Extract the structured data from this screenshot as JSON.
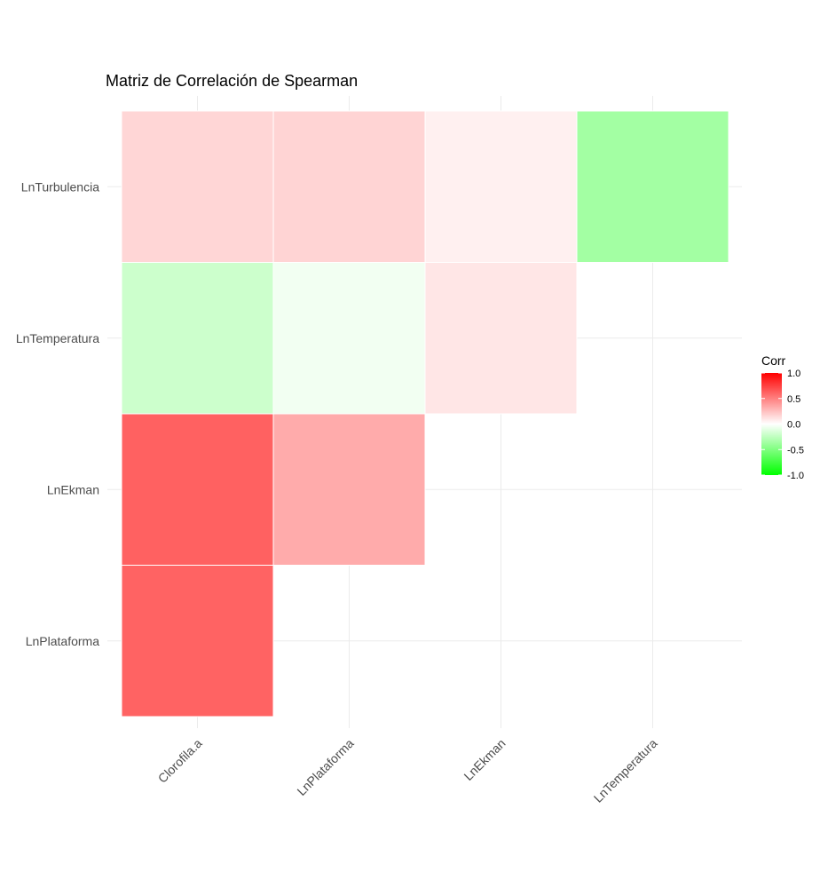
{
  "chart_data": {
    "type": "heatmap",
    "title": "Matriz de Correlación de Spearman",
    "x_categories": [
      "Clorofila.a",
      "LnPlataforma",
      "LnEkman",
      "LnTemperatura"
    ],
    "y_categories": [
      "LnTurbulencia",
      "LnTemperatura",
      "LnEkman",
      "LnPlataforma"
    ],
    "cells": [
      {
        "x": "Clorofila.a",
        "y": "LnTurbulencia",
        "value": 0.16
      },
      {
        "x": "LnPlataforma",
        "y": "LnTurbulencia",
        "value": 0.17
      },
      {
        "x": "LnEkman",
        "y": "LnTurbulencia",
        "value": 0.06
      },
      {
        "x": "LnTemperatura",
        "y": "LnTurbulencia",
        "value": -0.36
      },
      {
        "x": "Clorofila.a",
        "y": "LnTemperatura",
        "value": -0.2
      },
      {
        "x": "LnPlataforma",
        "y": "LnTemperatura",
        "value": -0.05
      },
      {
        "x": "LnEkman",
        "y": "LnTemperatura",
        "value": 0.1
      },
      {
        "x": "Clorofila.a",
        "y": "LnEkman",
        "value": 0.62
      },
      {
        "x": "LnPlataforma",
        "y": "LnEkman",
        "value": 0.33
      },
      {
        "x": "Clorofila.a",
        "y": "LnPlataforma",
        "value": 0.61
      }
    ],
    "legend": {
      "title": "Corr",
      "ticks": [
        "1.0",
        "0.5",
        "0.0",
        "-0.5",
        "-1.0"
      ],
      "limits": [
        -1,
        1
      ],
      "placement": "right"
    },
    "colors": {
      "low": "#00ff00",
      "mid": "#ffffff",
      "high": "#ff0000"
    },
    "grid": true
  }
}
